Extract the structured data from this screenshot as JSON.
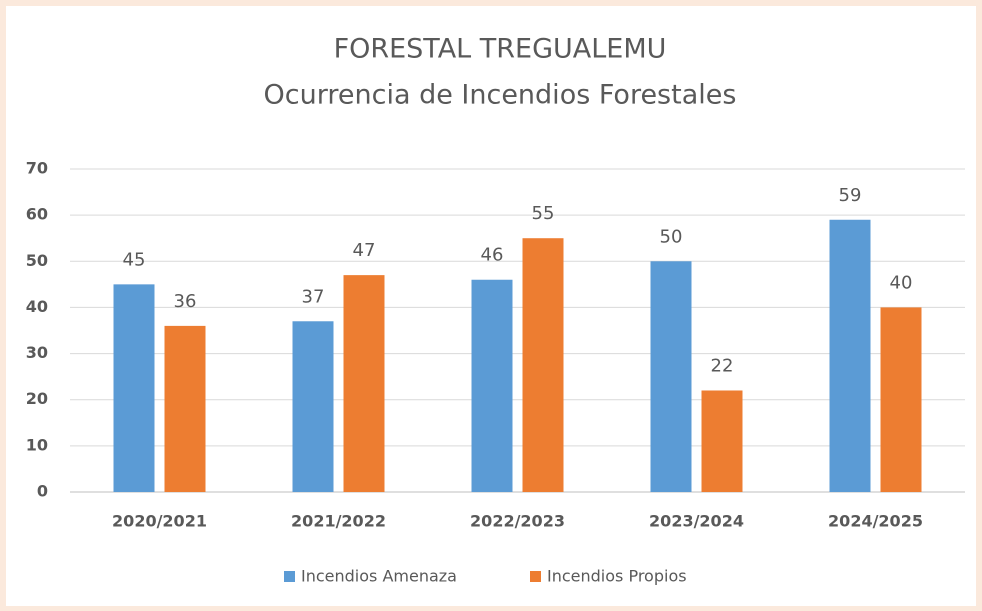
{
  "chart_data": {
    "type": "bar",
    "title": "FORESTAL TREGUALEMU",
    "subtitle": "Ocurrencia de Incendios Forestales",
    "categories": [
      "2020/2021",
      "2021/2022",
      "2022/2023",
      "2023/2024",
      "2024/2025"
    ],
    "series": [
      {
        "name": "Incendios Amenaza",
        "color": "#5b9bd5",
        "values": [
          45,
          37,
          46,
          50,
          59
        ]
      },
      {
        "name": "Incendios Propios",
        "color": "#ed7d31",
        "values": [
          36,
          47,
          55,
          22,
          40
        ]
      }
    ],
    "ylim": [
      0,
      70
    ],
    "yticks": [
      0,
      10,
      20,
      30,
      40,
      50,
      60,
      70
    ],
    "grid": true,
    "legend": "bottom"
  }
}
